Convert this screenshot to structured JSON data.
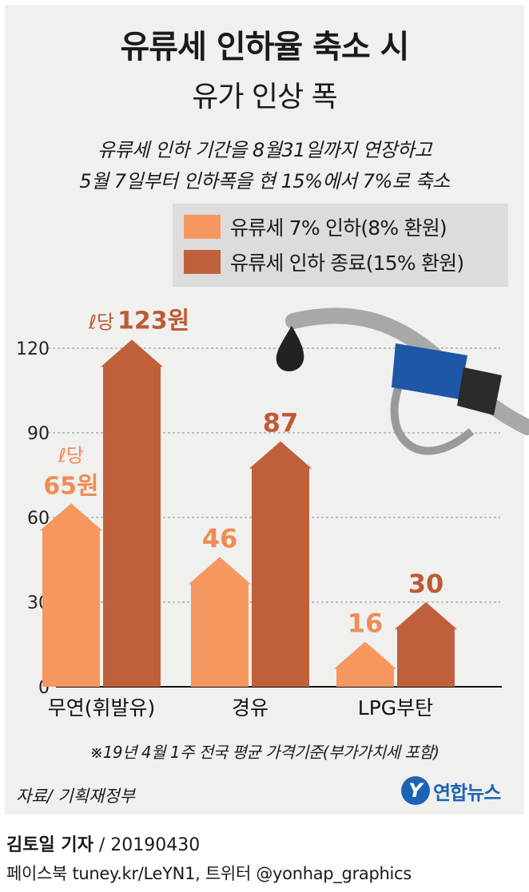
{
  "header": {
    "title": "유류세 인하율 축소 시",
    "subtitle": "유가 인상 폭",
    "desc_line1": "유류세 인하 기간을 8월31일까지 연장하고",
    "desc_line2": "5월 7일부터 인하폭을 현 15%에서 7%로 축소"
  },
  "legend": {
    "item1": "유류세 7% 인하(8% 환원)",
    "item2": "유류세 인하 종료(15% 환원)"
  },
  "colors": {
    "light": "#f5975e",
    "dark": "#c0603b",
    "light_text": "#ef8c55",
    "dark_text": "#bf5a35"
  },
  "annotations": {
    "per_liter_prefix": "ℓ당",
    "per_liter_unit": "원"
  },
  "chart_data": {
    "type": "bar",
    "categories": [
      "무연(휘발유)",
      "경유",
      "LPG부탄"
    ],
    "series": [
      {
        "name": "유류세 7% 인하(8% 환원)",
        "values": [
          65,
          46,
          16
        ]
      },
      {
        "name": "유류세 인하 종료(15% 환원)",
        "values": [
          123,
          87,
          30
        ]
      }
    ],
    "value_labels": [
      [
        "65원",
        "123원"
      ],
      [
        "46",
        "87"
      ],
      [
        "16",
        "30"
      ]
    ],
    "yticks": [
      0,
      30,
      60,
      90,
      120
    ],
    "ylim": [
      0,
      120
    ],
    "grid": true,
    "legend_position": "top-right"
  },
  "footnote": "※19년 4월 1주 전국 평균 가격기준(부가가치세 포함)",
  "source": "자료/ 기획재정부",
  "logo": {
    "mark": "Y",
    "text": "연합뉴스"
  },
  "byline": {
    "reporter": "김토일 기자",
    "date": "/ 20190430"
  },
  "footer": "페이스북 tuney.kr/LeYN1, 트위터 @yonhap_graphics"
}
